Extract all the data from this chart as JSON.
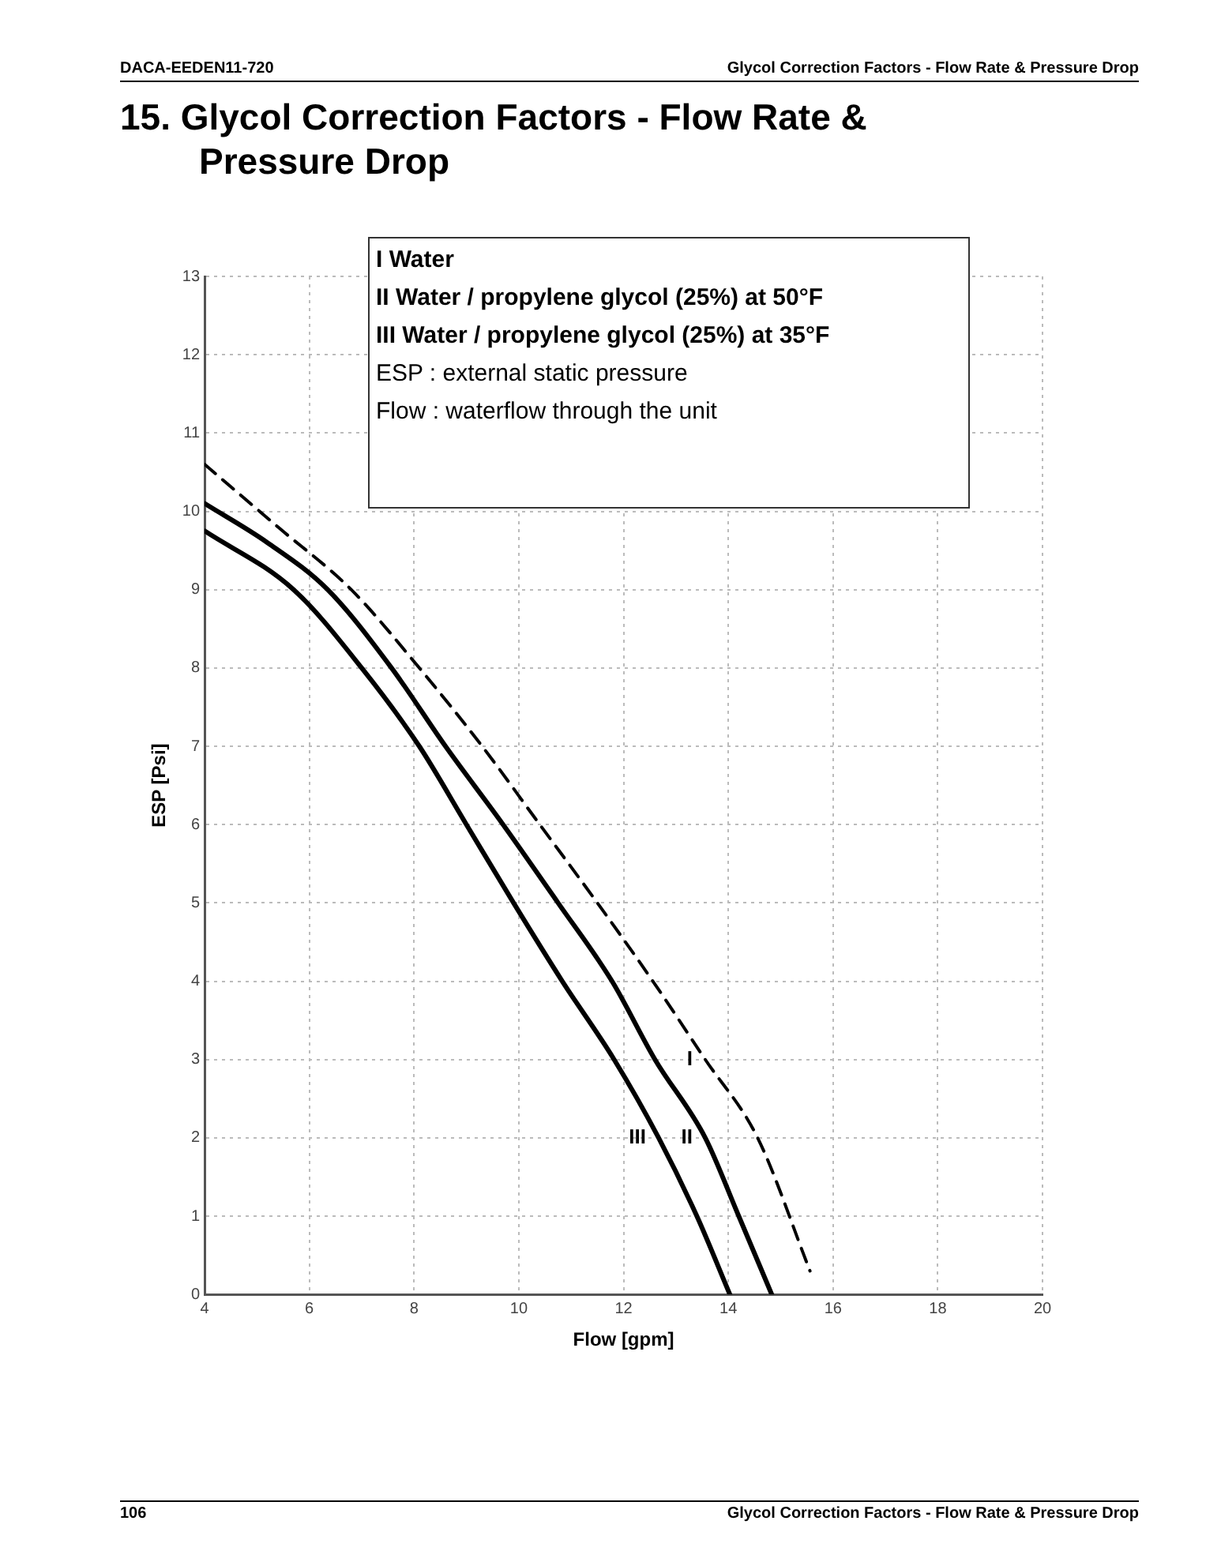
{
  "chart_data": {
    "type": "line",
    "title": "15. Glycol Correction Factors - Flow Rate & Pressure Drop",
    "xlabel": "Flow [gpm]",
    "ylabel": "ESP [Psi]",
    "xlim": [
      4,
      20
    ],
    "xticks": [
      4,
      6,
      8,
      10,
      12,
      14,
      16,
      18,
      20
    ],
    "ylim": [
      0,
      13
    ],
    "yticks": [
      0,
      1,
      2,
      3,
      4,
      5,
      6,
      7,
      8,
      9,
      10,
      11,
      12,
      13
    ],
    "grid": true,
    "legend": false,
    "marker": "none",
    "series": [
      {
        "name": "I",
        "color": "#000000",
        "line_style": "dashed",
        "x": [
          4,
          5.4,
          6.8,
          8.1,
          9.3,
          10.4,
          11.5,
          12.56,
          13.56,
          14.56,
          15.56
        ],
        "values": [
          10.6,
          9.8,
          9,
          8,
          7,
          6,
          5,
          4,
          3,
          2,
          0.3
        ]
      },
      {
        "name": "II",
        "color": "#000000",
        "line_style": "solid",
        "x": [
          4,
          5.2,
          6.35,
          7.57,
          8.6,
          9.7,
          10.75,
          11.78,
          12.6,
          13.56,
          14.2,
          14.83
        ],
        "values": [
          10.1,
          9.6,
          9,
          8,
          7,
          6,
          5,
          4,
          3,
          2,
          1,
          0
        ]
      },
      {
        "name": "III",
        "color": "#000000",
        "line_style": "solid",
        "x": [
          4,
          5.7,
          7,
          8.1,
          9,
          9.9,
          10.83,
          11.82,
          12.67,
          13.4,
          14.03
        ],
        "values": [
          9.75,
          9,
          8,
          7,
          6,
          5,
          4,
          3,
          2,
          1,
          0
        ]
      }
    ],
    "annotations": [
      "I Water",
      "II Water / propylene glycol (25%) at 50°F",
      "III Water / propylene glycol (25%) at 35°F",
      "ESP : external static pressure",
      "Flow : waterflow through the unit",
      "DACA-EEDEN11-720",
      "Glycol Correction Factors - Flow Rate & Pressure Drop",
      "106",
      "Glycol Correction Factors - Flow Rate & Pressure Drop"
    ]
  }
}
